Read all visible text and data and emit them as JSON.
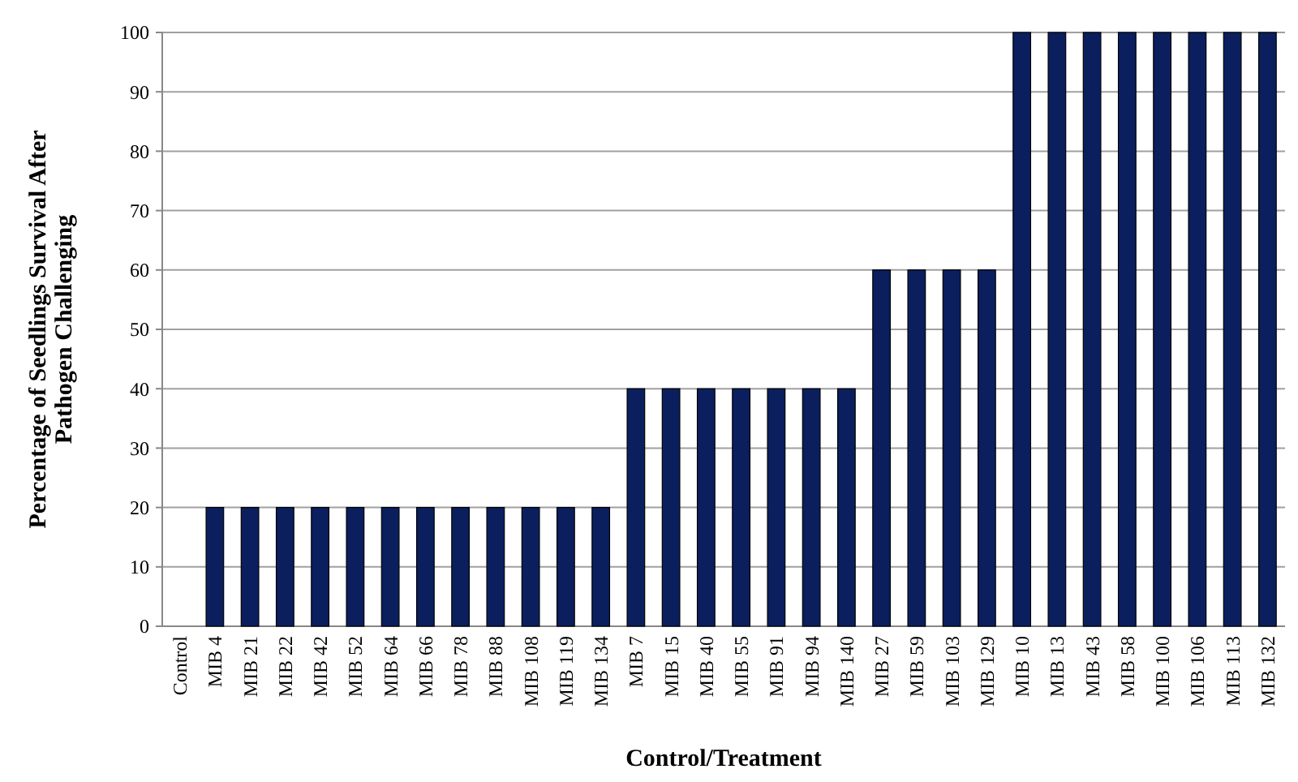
{
  "chart_data": {
    "type": "bar",
    "xlabel": "Control/Treatment",
    "ylabel": "Percentage of Seedlings Survival After\nPathogen Challenging",
    "categories": [
      "Control",
      "MIB 4",
      "MIB 21",
      "MIB 22",
      "MIB 42",
      "MIB 52",
      "MIB 64",
      "MIB 66",
      "MIB 78",
      "MIB 88",
      "MIB 108",
      "MIB 119",
      "MIB 134",
      "MIB 7",
      "MIB 15",
      "MIB 40",
      "MIB 55",
      "MIB 91",
      "MIB 94",
      "MIB 140",
      "MIB 27",
      "MIB 59",
      "MIB 103",
      "MIB 129",
      "MIB 10",
      "MIB 13",
      "MIB 43",
      "MIB 58",
      "MIB 100",
      "MIB 106",
      "MIB 113",
      "MIB 132"
    ],
    "values": [
      0,
      20,
      20,
      20,
      20,
      20,
      20,
      20,
      20,
      20,
      20,
      20,
      20,
      40,
      40,
      40,
      40,
      40,
      40,
      40,
      60,
      60,
      60,
      60,
      100,
      100,
      100,
      100,
      100,
      100,
      100,
      100
    ],
    "color": "#0b1f5e",
    "ylim": [
      0,
      100
    ],
    "yticks": [
      0,
      10,
      20,
      30,
      40,
      50,
      60,
      70,
      80,
      90,
      100
    ],
    "grid": "y"
  }
}
